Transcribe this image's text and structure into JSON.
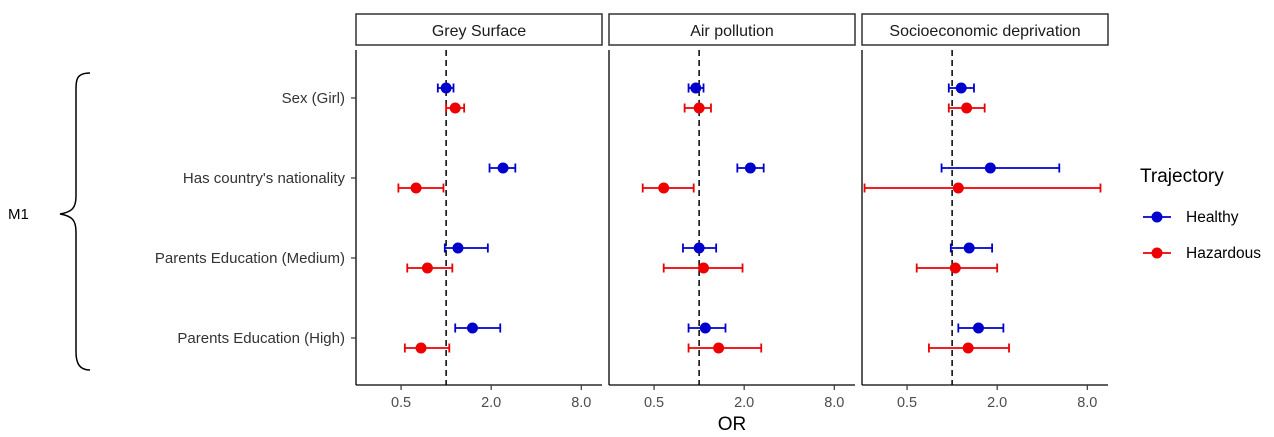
{
  "chart_data": {
    "type": "forest",
    "group_label": "M1",
    "rows": [
      "Sex (Girl)",
      "Has country's nationality",
      "Parents Education (Medium)",
      "Parents Education (High)"
    ],
    "x_axis": {
      "label": "OR",
      "scale": "log2",
      "range": [
        0.25,
        11
      ],
      "ticks": [
        0.5,
        2.0,
        8.0
      ],
      "tick_labels": [
        "0.5",
        "2.0",
        "8.0"
      ],
      "reference_line": 1
    },
    "legend": {
      "title": "Trajectory",
      "position": "right",
      "entries": [
        {
          "name": "Healthy",
          "color": "#0000CC"
        },
        {
          "name": "Hazardous",
          "color": "#EE0000"
        }
      ]
    },
    "facets": [
      {
        "title": "Grey Surface",
        "series": {
          "Healthy": [
            {
              "or": 1.0,
              "lo": 0.88,
              "hi": 1.12
            },
            {
              "or": 2.4,
              "lo": 1.95,
              "hi": 2.9
            },
            {
              "or": 1.2,
              "lo": 0.98,
              "hi": 1.9
            },
            {
              "or": 1.5,
              "lo": 1.15,
              "hi": 2.3
            }
          ],
          "Hazardous": [
            {
              "or": 1.15,
              "lo": 1.0,
              "hi": 1.32
            },
            {
              "or": 0.63,
              "lo": 0.48,
              "hi": 0.96
            },
            {
              "or": 0.75,
              "lo": 0.55,
              "hi": 1.1
            },
            {
              "or": 0.68,
              "lo": 0.53,
              "hi": 1.05
            }
          ]
        }
      },
      {
        "title": "Air pollution",
        "series": {
          "Healthy": [
            {
              "or": 0.95,
              "lo": 0.85,
              "hi": 1.07
            },
            {
              "or": 2.2,
              "lo": 1.8,
              "hi": 2.7
            },
            {
              "or": 1.0,
              "lo": 0.78,
              "hi": 1.3
            },
            {
              "or": 1.1,
              "lo": 0.85,
              "hi": 1.5
            }
          ],
          "Hazardous": [
            {
              "or": 1.0,
              "lo": 0.8,
              "hi": 1.2
            },
            {
              "or": 0.58,
              "lo": 0.42,
              "hi": 0.92
            },
            {
              "or": 1.07,
              "lo": 0.58,
              "hi": 1.95
            },
            {
              "or": 1.35,
              "lo": 0.85,
              "hi": 2.6
            }
          ]
        }
      },
      {
        "title": "Socioeconomic deprivation",
        "series": {
          "Healthy": [
            {
              "or": 1.15,
              "lo": 0.95,
              "hi": 1.4
            },
            {
              "or": 1.8,
              "lo": 0.85,
              "hi": 5.2
            },
            {
              "or": 1.3,
              "lo": 0.98,
              "hi": 1.85
            },
            {
              "or": 1.5,
              "lo": 1.1,
              "hi": 2.2
            }
          ],
          "Hazardous": [
            {
              "or": 1.25,
              "lo": 0.95,
              "hi": 1.65
            },
            {
              "or": 1.1,
              "lo": 0.26,
              "hi": 9.8
            },
            {
              "or": 1.05,
              "lo": 0.58,
              "hi": 2.0
            },
            {
              "or": 1.28,
              "lo": 0.7,
              "hi": 2.4
            }
          ]
        }
      }
    ]
  }
}
